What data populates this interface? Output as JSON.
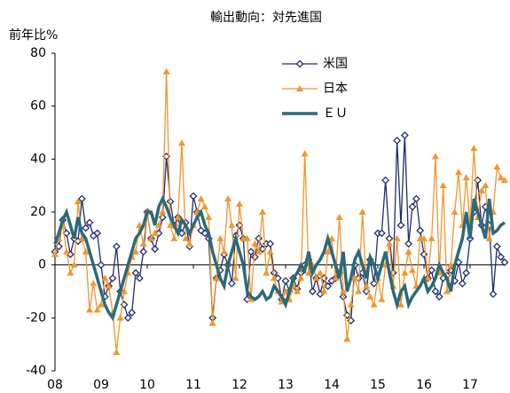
{
  "chart_data": {
    "type": "line",
    "title": "輸出動向：対先進国",
    "y_label": "前年比%",
    "categories": [
      "08",
      null,
      null,
      null,
      null,
      null,
      null,
      null,
      null,
      null,
      null,
      null,
      "09",
      null,
      null,
      null,
      null,
      null,
      null,
      null,
      null,
      null,
      null,
      null,
      "10",
      null,
      null,
      null,
      null,
      null,
      null,
      null,
      null,
      null,
      null,
      null,
      "11",
      null,
      null,
      null,
      null,
      null,
      null,
      null,
      null,
      null,
      null,
      null,
      "12",
      null,
      null,
      null,
      null,
      null,
      null,
      null,
      null,
      null,
      null,
      null,
      "13",
      null,
      null,
      null,
      null,
      null,
      null,
      null,
      null,
      null,
      null,
      null,
      "14",
      null,
      null,
      null,
      null,
      null,
      null,
      null,
      null,
      null,
      null,
      null,
      "15",
      null,
      null,
      null,
      null,
      null,
      null,
      null,
      null,
      null,
      null,
      null,
      "16",
      null,
      null,
      null,
      null,
      null,
      null,
      null,
      null,
      null,
      null,
      null,
      "17",
      null,
      null,
      null,
      null,
      null,
      null,
      null,
      null,
      null
    ],
    "series": [
      {
        "name": "米国",
        "color": "#1f2d6e",
        "marker": "diamond",
        "values": [
          5,
          7,
          17,
          12,
          4,
          10,
          9,
          25,
          14,
          16,
          11,
          12,
          0,
          -12,
          -8,
          -5,
          7,
          -10,
          -15,
          -20,
          -18,
          -3,
          -5,
          5,
          20,
          10,
          6,
          12,
          18,
          41,
          24,
          15,
          18,
          12,
          16,
          7,
          26,
          20,
          13,
          12,
          10,
          -20,
          -5,
          -2,
          4,
          0,
          -7,
          11,
          15,
          10,
          -13,
          5,
          3,
          10,
          6,
          8,
          8,
          -3,
          -5,
          -13,
          -6,
          -10,
          -5,
          -9,
          -3,
          0,
          2,
          -10,
          -5,
          -11,
          -5,
          -8,
          -6,
          -5,
          -3,
          -12,
          -19,
          -21,
          0,
          -5,
          -3,
          -10,
          2,
          -7,
          12,
          12,
          32,
          10,
          -3,
          47,
          15,
          49,
          8,
          22,
          25,
          13,
          4,
          -5,
          -2,
          -10,
          -12,
          -5,
          -4,
          -2,
          -6,
          1,
          -7,
          -3,
          10,
          20,
          32,
          15,
          22,
          15,
          -11,
          7,
          3,
          1
        ]
      },
      {
        "name": "日本",
        "color": "#f0962e",
        "marker": "triangle",
        "values": [
          4,
          10,
          15,
          5,
          -3,
          0,
          24,
          10,
          5,
          -17,
          -7,
          -17,
          -15,
          -5,
          -8,
          -18,
          -33,
          -20,
          -10,
          -3,
          3,
          5,
          15,
          8,
          20,
          10,
          12,
          15,
          20,
          73,
          15,
          10,
          18,
          46,
          10,
          8,
          15,
          20,
          25,
          22,
          18,
          -22,
          -5,
          10,
          5,
          25,
          15,
          -5,
          23,
          10,
          10,
          -13,
          8,
          5,
          20,
          -3,
          5,
          -5,
          -10,
          -14,
          -10,
          -13,
          -8,
          -10,
          -5,
          42,
          -3,
          0,
          -5,
          -3,
          -10,
          5,
          10,
          -5,
          18,
          -10,
          -28,
          -15,
          -5,
          -10,
          20,
          -8,
          -12,
          -15,
          -5,
          -13,
          0,
          8,
          -8,
          10,
          -15,
          -3,
          5,
          -2,
          -8,
          10,
          10,
          -5,
          10,
          41,
          -3,
          30,
          -10,
          0,
          20,
          35,
          15,
          33,
          15,
          44,
          18,
          28,
          30,
          10,
          20,
          37,
          33,
          32
        ]
      },
      {
        "name": "ＥＵ",
        "color": "#2c6a78",
        "marker": "none",
        "values": [
          8,
          12,
          17,
          20,
          15,
          10,
          18,
          12,
          10,
          5,
          0,
          -5,
          -10,
          -15,
          -18,
          -20,
          -15,
          -10,
          -5,
          0,
          5,
          10,
          12,
          15,
          20,
          20,
          15,
          22,
          25,
          22,
          18,
          15,
          12,
          17,
          15,
          12,
          15,
          18,
          20,
          15,
          12,
          5,
          0,
          -5,
          -8,
          0,
          5,
          10,
          5,
          0,
          -10,
          -12,
          -13,
          -12,
          -10,
          -13,
          -12,
          -8,
          -10,
          -12,
          -15,
          -10,
          -5,
          -3,
          0,
          -2,
          5,
          -3,
          0,
          2,
          5,
          10,
          5,
          0,
          -5,
          5,
          -10,
          -5,
          2,
          5,
          0,
          -5,
          3,
          0,
          -5,
          0,
          5,
          -3,
          -10,
          -15,
          -10,
          -8,
          -15,
          -12,
          -10,
          -8,
          -5,
          -10,
          -8,
          -5,
          0,
          -3,
          -5,
          -10,
          0,
          5,
          10,
          20,
          10,
          25,
          20,
          15,
          10,
          25,
          12,
          13,
          15,
          16
        ]
      }
    ],
    "ylim": [
      -40,
      80
    ],
    "yticks": [
      -40,
      -20,
      0,
      20,
      40,
      60,
      80
    ]
  }
}
